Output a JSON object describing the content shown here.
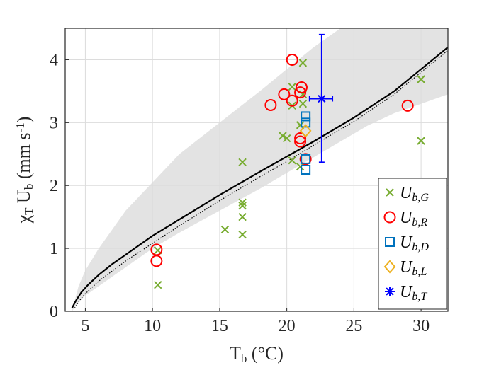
{
  "chart_data": {
    "type": "scatter",
    "xlabel": "T_b (°C)",
    "ylabel": "χ_T U_b (mm s^-1)",
    "xlim": [
      3.5,
      32
    ],
    "ylim": [
      0,
      4.5
    ],
    "xticks": [
      5,
      10,
      15,
      20,
      25,
      30
    ],
    "yticks": [
      0,
      1,
      2,
      3,
      4
    ],
    "grid": true,
    "legend_position": "bottom-right",
    "band": {
      "x": [
        4.0,
        4.5,
        5.0,
        6.0,
        8.0,
        10.0,
        12.0,
        15.0,
        18.0,
        20.0,
        22.0,
        24.0,
        26.0,
        28.0,
        30.0,
        32.0
      ],
      "lower": [
        0.0,
        0.15,
        0.25,
        0.4,
        0.7,
        1.0,
        1.25,
        1.6,
        1.95,
        2.2,
        2.45,
        2.7,
        2.95,
        3.15,
        3.3,
        3.45
      ],
      "upper": [
        0.0,
        0.4,
        0.65,
        1.0,
        1.6,
        2.05,
        2.5,
        3.0,
        3.5,
        3.85,
        4.2,
        4.5,
        4.5,
        4.5,
        4.5,
        4.5
      ]
    },
    "solid_curve": {
      "x": [
        4.0,
        4.3,
        4.7,
        5.2,
        6.0,
        7.0,
        8.0,
        9.0,
        10.0,
        12.0,
        15.0,
        18.0,
        20.0,
        22.0,
        25.0,
        28.0,
        30.0,
        32.0
      ],
      "y": [
        0.05,
        0.17,
        0.3,
        0.42,
        0.58,
        0.75,
        0.9,
        1.05,
        1.2,
        1.46,
        1.85,
        2.22,
        2.46,
        2.7,
        3.08,
        3.5,
        3.85,
        4.2
      ]
    },
    "dotted_curve": {
      "x": [
        4.2,
        4.6,
        5.0,
        6.0,
        7.0,
        8.0,
        9.0,
        10.0,
        12.0,
        15.0,
        18.0,
        20.0,
        22.0,
        25.0,
        28.0,
        30.0,
        32.0
      ],
      "y": [
        0.05,
        0.18,
        0.28,
        0.48,
        0.64,
        0.8,
        0.94,
        1.08,
        1.36,
        1.76,
        2.14,
        2.38,
        2.64,
        3.02,
        3.45,
        3.8,
        4.15
      ]
    },
    "series": [
      {
        "name": "U_{b,G}",
        "label_main": "U",
        "label_sub": "b,G",
        "marker": "x",
        "color": "#77AC30",
        "points": [
          [
            10.4,
            0.97
          ],
          [
            10.4,
            0.42
          ],
          [
            15.4,
            1.3
          ],
          [
            16.7,
            2.37
          ],
          [
            16.7,
            1.73
          ],
          [
            16.7,
            1.68
          ],
          [
            16.7,
            1.5
          ],
          [
            16.7,
            1.22
          ],
          [
            19.7,
            2.79
          ],
          [
            20.0,
            2.75
          ],
          [
            20.4,
            3.57
          ],
          [
            20.4,
            3.27
          ],
          [
            20.4,
            2.4
          ],
          [
            21.0,
            2.96
          ],
          [
            21.0,
            2.3
          ],
          [
            21.2,
            3.95
          ],
          [
            21.2,
            3.45
          ],
          [
            21.2,
            3.3
          ],
          [
            30.0,
            3.69
          ],
          [
            30.0,
            2.71
          ]
        ]
      },
      {
        "name": "U_{b,R}",
        "label_main": "U",
        "label_sub": "b,R",
        "marker": "o",
        "color": "#FF0000",
        "points": [
          [
            10.3,
            0.98
          ],
          [
            10.3,
            0.8
          ],
          [
            18.8,
            3.28
          ],
          [
            19.8,
            3.45
          ],
          [
            20.4,
            4.0
          ],
          [
            20.4,
            3.35
          ],
          [
            21.0,
            3.48
          ],
          [
            21.1,
            3.56
          ],
          [
            21.0,
            2.75
          ],
          [
            21.0,
            2.7
          ],
          [
            21.4,
            2.42
          ],
          [
            29.0,
            3.27
          ]
        ]
      },
      {
        "name": "U_{b,D}",
        "label_main": "U",
        "label_sub": "b,D",
        "marker": "s",
        "color": "#0072BD",
        "points": [
          [
            21.4,
            3.1
          ],
          [
            21.4,
            3.0
          ],
          [
            21.4,
            2.42
          ],
          [
            21.4,
            2.25
          ]
        ]
      },
      {
        "name": "U_{b,L}",
        "label_main": "U",
        "label_sub": "b,L",
        "marker": "d",
        "color": "#EDB120",
        "points": [
          [
            21.4,
            2.87
          ]
        ]
      },
      {
        "name": "U_{b,T}",
        "label_main": "U",
        "label_sub": "b,T",
        "marker": "*",
        "color": "#0000FF",
        "points": [
          [
            22.6,
            3.38
          ]
        ],
        "y_error": [
          2.37,
          4.4
        ],
        "x_error": [
          21.7,
          23.4
        ]
      }
    ]
  }
}
